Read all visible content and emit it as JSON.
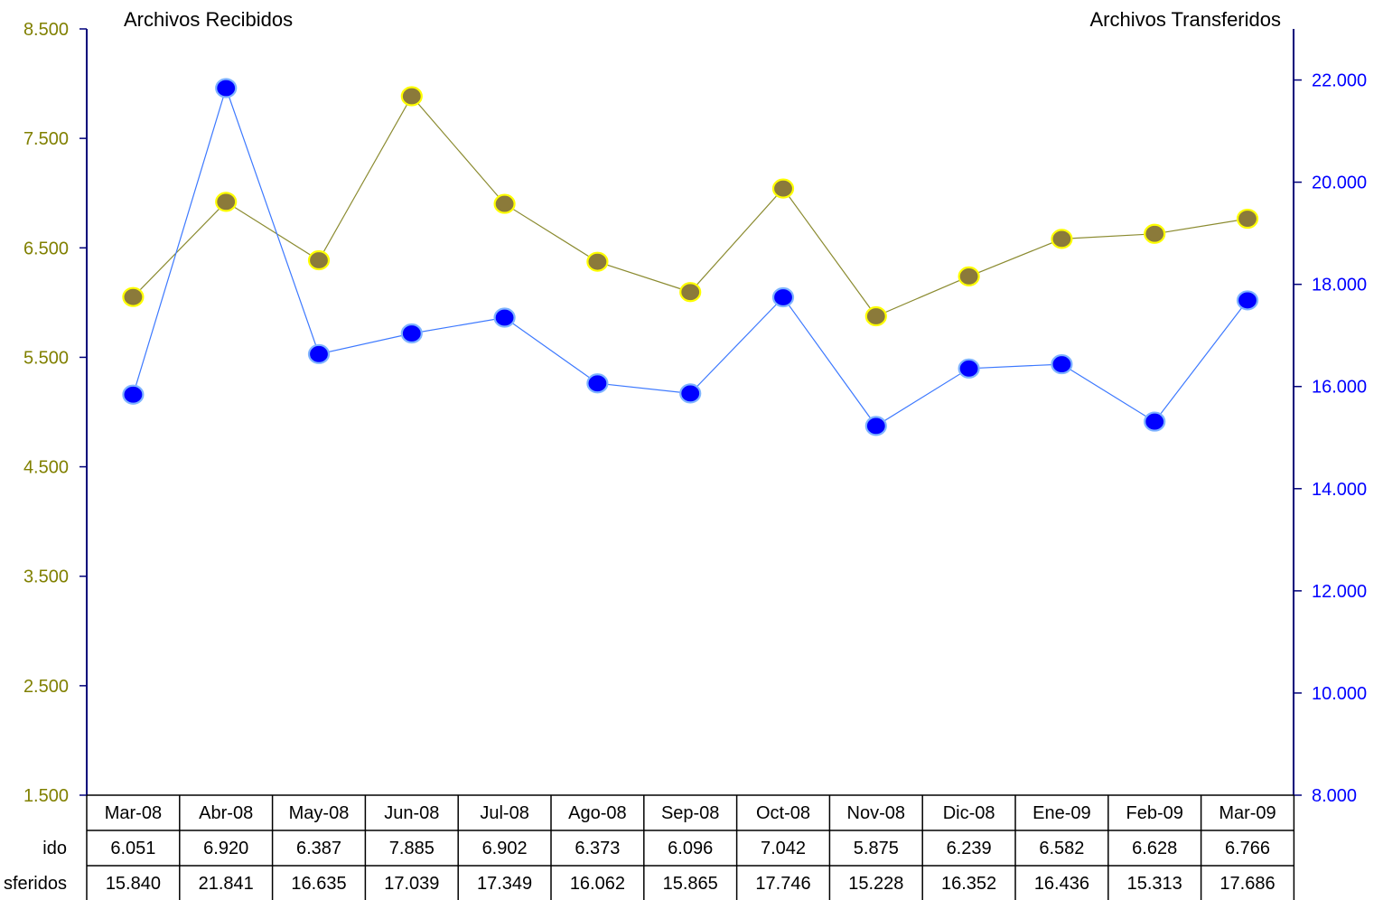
{
  "colors": {
    "left_axis": "#808000",
    "right_axis": "#0000ff",
    "axis_line": "#00007a",
    "recibidos_line": "#8b8b30",
    "recibidos_fill": "#8b7a3a",
    "recibidos_stroke": "#ffff00",
    "transferidos_line": "#3d79ff",
    "transferidos_fill": "#0000ff",
    "transferidos_stroke": "#7fb4ff",
    "text": "#000000"
  },
  "chart_data": {
    "type": "line",
    "left_axis_title": "Archivos Recibidos",
    "right_axis_title": "Archivos Transferidos",
    "categories": [
      "Mar-08",
      "Abr-08",
      "May-08",
      "Jun-08",
      "Jul-08",
      "Ago-08",
      "Sep-08",
      "Oct-08",
      "Nov-08",
      "Dic-08",
      "Ene-09",
      "Feb-09",
      "Mar-09"
    ],
    "left_axis": {
      "min": 1500,
      "max": 8500,
      "ticks": [
        "1.500",
        "2.500",
        "3.500",
        "4.500",
        "5.500",
        "6.500",
        "7.500",
        "8.500"
      ]
    },
    "right_axis": {
      "min": 8000,
      "max": 23000,
      "ticks": [
        "8.000",
        "10.000",
        "12.000",
        "14.000",
        "16.000",
        "18.000",
        "20.000",
        "22.000"
      ]
    },
    "grid": false,
    "series": [
      {
        "name": "ido",
        "axis": "left",
        "values": [
          6051,
          6920,
          6387,
          7885,
          6902,
          6373,
          6096,
          7042,
          5875,
          6239,
          6582,
          6628,
          6766
        ],
        "labels": [
          "6.051",
          "6.920",
          "6.387",
          "7.885",
          "6.902",
          "6.373",
          "6.096",
          "7.042",
          "5.875",
          "6.239",
          "6.582",
          "6.628",
          "6.766"
        ]
      },
      {
        "name": "sferidos",
        "axis": "right",
        "values": [
          15840,
          21841,
          16635,
          17039,
          17349,
          16062,
          15865,
          17746,
          15228,
          16352,
          16436,
          15313,
          17686
        ],
        "labels": [
          "15.840",
          "21.841",
          "16.635",
          "17.039",
          "17.349",
          "16.062",
          "15.865",
          "17.746",
          "15.228",
          "16.352",
          "16.436",
          "15.313",
          "17.686"
        ]
      }
    ]
  }
}
